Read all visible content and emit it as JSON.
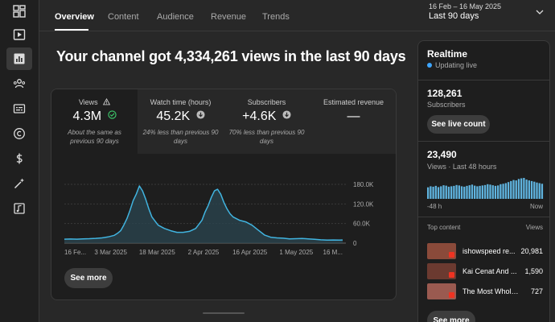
{
  "sidebar": {
    "items": [
      {
        "icon": "dashboard-icon",
        "active": false
      },
      {
        "icon": "content-icon",
        "active": false
      },
      {
        "icon": "analytics-icon",
        "active": true
      },
      {
        "icon": "community-icon",
        "active": false
      },
      {
        "icon": "subtitles-icon",
        "active": false
      },
      {
        "icon": "copyright-icon",
        "active": false
      },
      {
        "icon": "earn-icon",
        "active": false
      },
      {
        "icon": "customization-icon",
        "active": false
      },
      {
        "icon": "audio-library-icon",
        "active": false
      }
    ]
  },
  "tabs": [
    "Overview",
    "Content",
    "Audience",
    "Revenue",
    "Trends"
  ],
  "date_range": {
    "range": "16 Feb – 16 May 2025",
    "label": "Last 90 days"
  },
  "headline": "Your channel got 4,334,261 views in the last 90 days",
  "metrics": [
    {
      "label": "Views",
      "value": "4.3M",
      "note": "About the same as previous 90 days",
      "status": "check"
    },
    {
      "label": "Watch time (hours)",
      "value": "45.2K",
      "note": "24% less than previous 90 days",
      "status": "down"
    },
    {
      "label": "Subscribers",
      "value": "+4.6K",
      "note": "70% less than previous 90 days",
      "status": "down"
    },
    {
      "label": "Estimated revenue",
      "value": "—",
      "note": ""
    }
  ],
  "see_more": "See more",
  "chart_data": {
    "type": "area",
    "title": "",
    "ylabel": "",
    "x_ticks": [
      "16 Fe...",
      "3 Mar 2025",
      "18 Mar 2025",
      "2 Apr 2025",
      "16 Apr 2025",
      "1 May 2025",
      "16 M..."
    ],
    "y_ticks": [
      "180.0K",
      "120.0K",
      "60.0K",
      "0"
    ],
    "ylim": [
      0,
      180000
    ],
    "x": [
      0,
      2,
      4,
      6,
      8,
      10,
      12,
      14,
      16,
      17,
      18,
      19,
      20,
      21,
      22,
      23,
      24,
      25,
      26,
      27,
      28,
      30,
      32,
      34,
      36,
      38,
      40,
      42,
      44,
      45,
      46,
      47,
      48,
      49,
      50,
      51,
      52,
      53,
      54,
      56,
      58,
      60,
      62,
      64,
      66,
      68,
      70,
      72,
      74,
      76,
      78,
      80,
      82,
      84,
      86,
      88,
      89
    ],
    "values": [
      12000,
      12500,
      12000,
      13000,
      13500,
      14500,
      16000,
      19000,
      24000,
      30000,
      38000,
      55000,
      75000,
      100000,
      130000,
      150000,
      175000,
      160000,
      135000,
      105000,
      80000,
      55000,
      45000,
      38000,
      33000,
      33000,
      36000,
      45000,
      70000,
      95000,
      115000,
      140000,
      160000,
      165000,
      150000,
      125000,
      105000,
      90000,
      80000,
      70000,
      65000,
      55000,
      40000,
      25000,
      18000,
      16000,
      15000,
      13000,
      13500,
      14000,
      13000,
      11500,
      10000,
      9000,
      9500,
      9000,
      9500
    ]
  },
  "realtime": {
    "title": "Realtime",
    "live_text": "Updating live",
    "subscribers": "128,261",
    "subscribers_label": "Subscribers",
    "see_live_count": "See live count",
    "views": "23,490",
    "views_label": "Views · Last 48 hours",
    "axis_left": "-48 h",
    "axis_right": "Now",
    "bar_values": [
      55,
      60,
      58,
      62,
      56,
      60,
      65,
      63,
      58,
      60,
      62,
      66,
      64,
      60,
      58,
      62,
      65,
      68,
      63,
      60,
      62,
      64,
      66,
      70,
      68,
      65,
      62,
      64,
      70,
      72,
      75,
      80,
      85,
      90,
      88,
      95,
      98,
      100,
      92,
      88,
      85,
      82,
      78,
      75,
      72
    ],
    "top_content_label": "Top content",
    "views_col_label": "Views",
    "videos": [
      {
        "title": "ishowspeed re...",
        "views": "20,981",
        "color": "#8a4a3a"
      },
      {
        "title": "Kai Cenat And ...",
        "views": "1,590",
        "color": "#6b3a30"
      },
      {
        "title": "The Most Wholes...",
        "views": "727",
        "color": "#9a5a50"
      }
    ],
    "see_more": "See more"
  }
}
